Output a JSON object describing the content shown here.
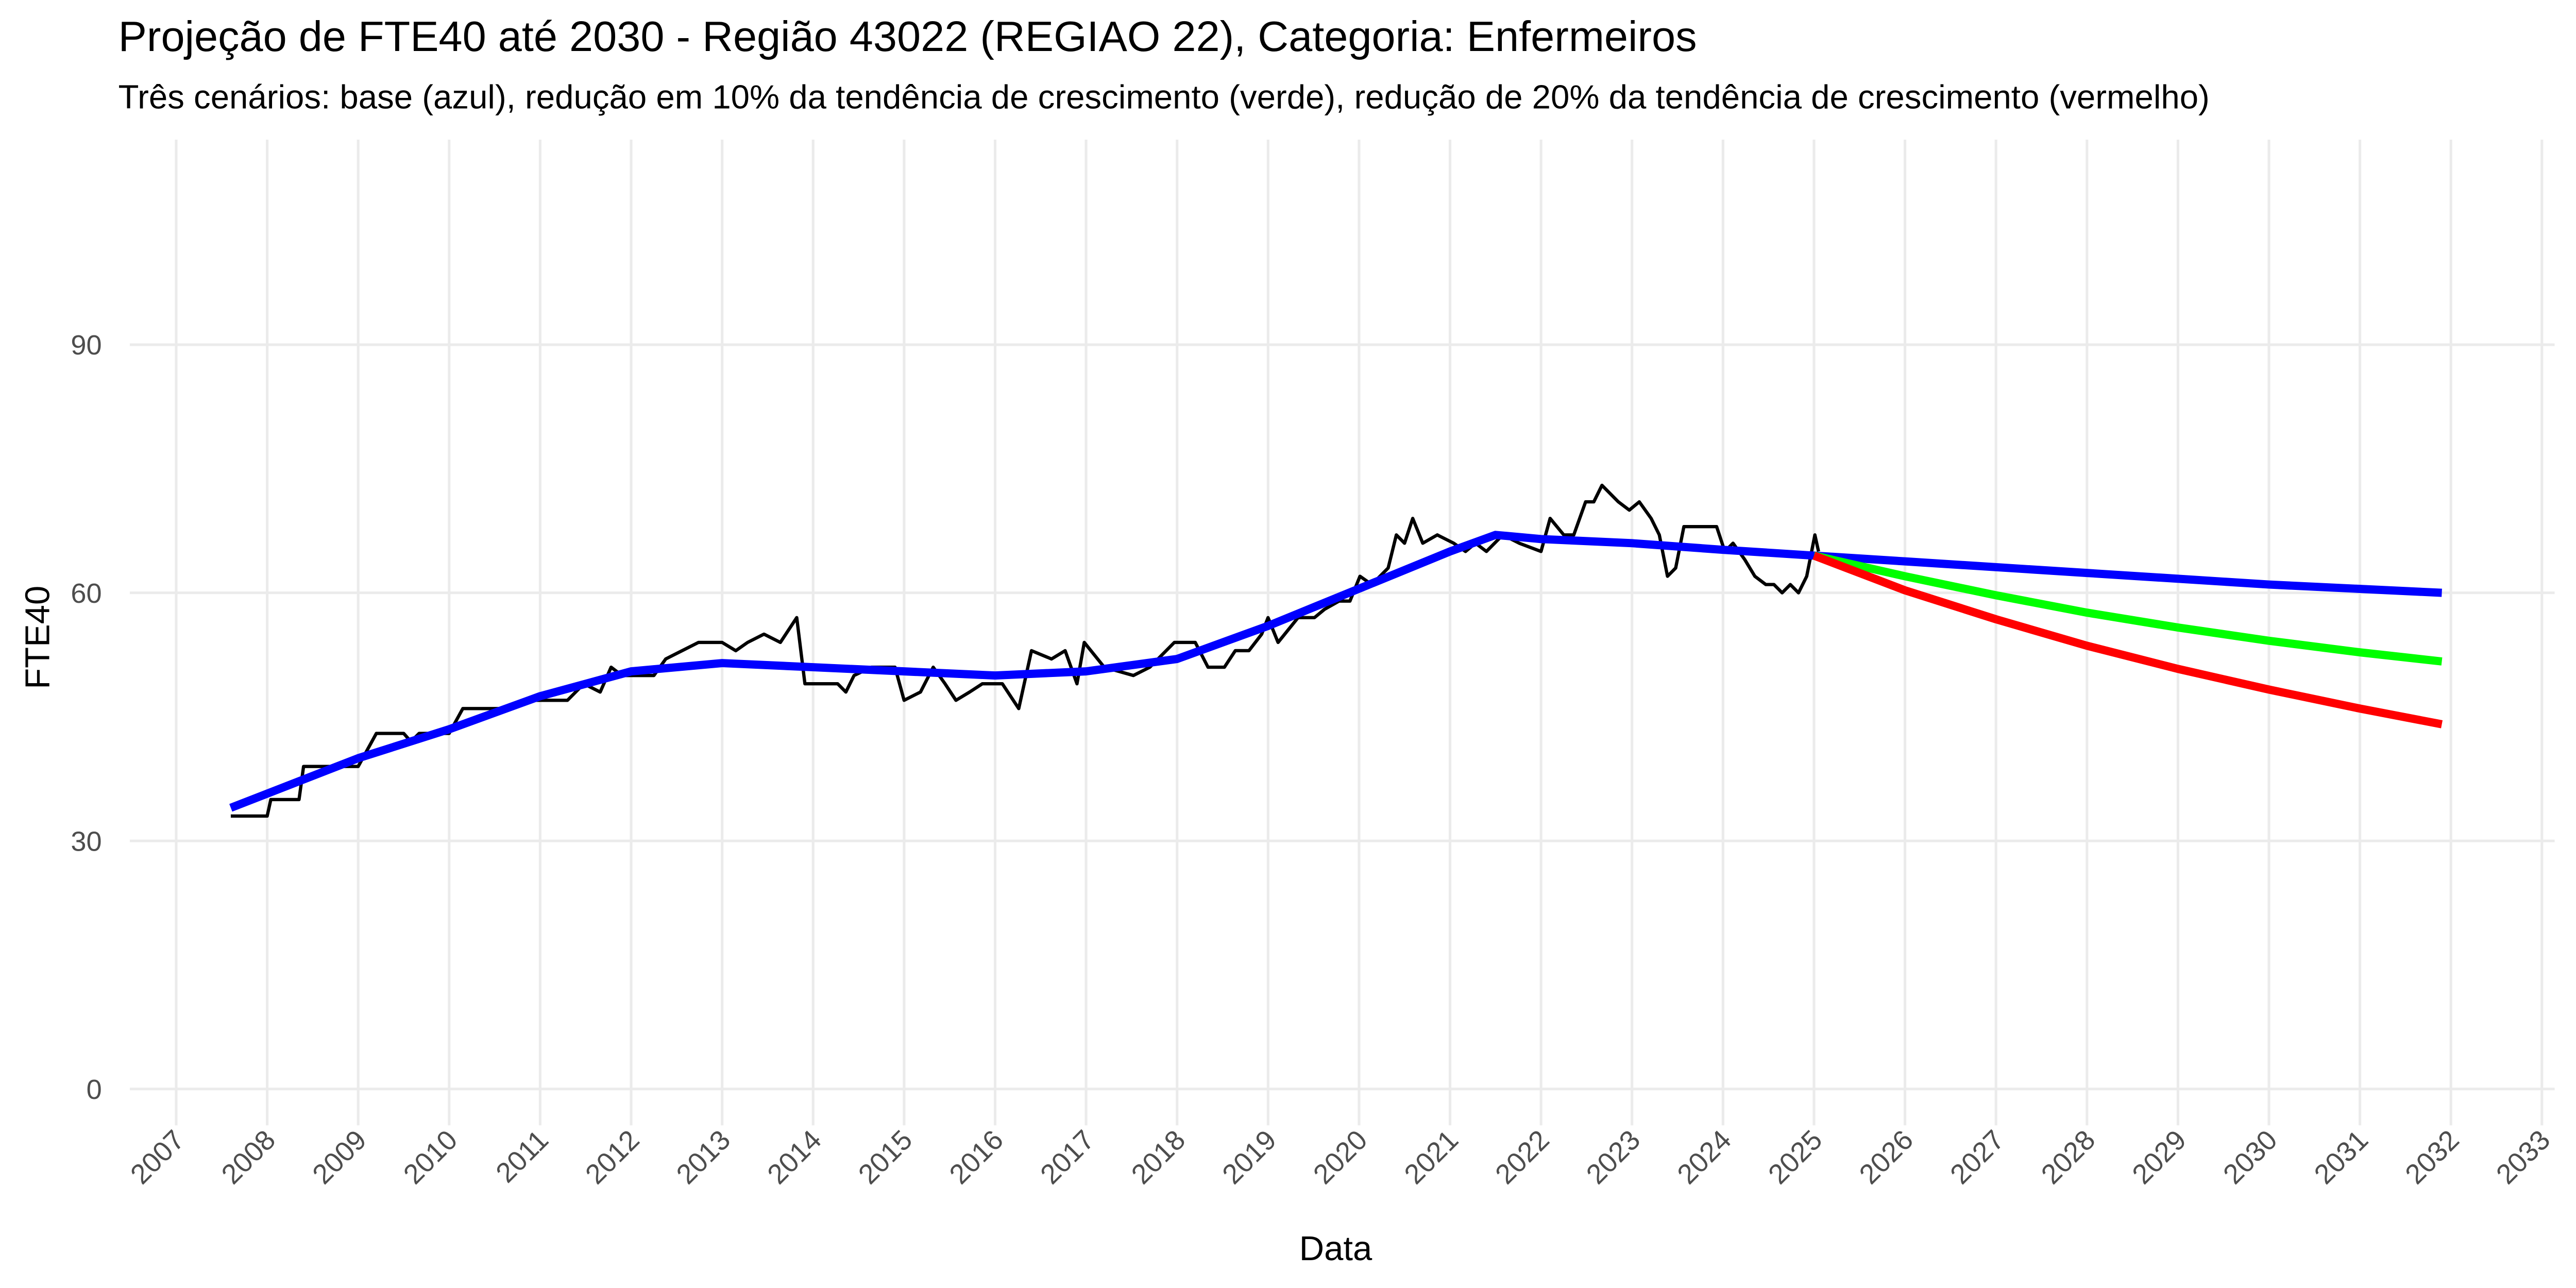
{
  "chart_data": {
    "type": "line",
    "title": "Projeção de FTE40 até 2030 - Região 43022 (REGIAO 22), Categoria: Enfermeiros",
    "subtitle": "Três cenários: base (azul), redução em 10% da tendência de crescimento (verde), redução de 20% da tendência de crescimento (vermelho)",
    "xlabel": "Data",
    "ylabel": "FTE40",
    "xlim": [
      2006.49,
      2033.14
    ],
    "xticks": [
      2007,
      2008,
      2009,
      2010,
      2011,
      2012,
      2013,
      2014,
      2015,
      2016,
      2017,
      2018,
      2019,
      2020,
      2021,
      2022,
      2023,
      2024,
      2025,
      2026,
      2027,
      2028,
      2029,
      2030,
      2031,
      2032,
      2033
    ],
    "ylim": [
      -4.4,
      114.8
    ],
    "yticks": [
      0,
      30,
      60,
      90
    ],
    "grid": true,
    "series": [
      {
        "color": "#000000",
        "x": [
          2007.6,
          2008.0,
          2008.04,
          2008.35,
          2008.4,
          2009.0,
          2009.2,
          2009.5,
          2009.58,
          2009.67,
          2010.0,
          2010.15,
          2010.65,
          2010.8,
          2011.3,
          2011.48,
          2011.66,
          2011.78,
          2011.9,
          2012.25,
          2012.38,
          2012.56,
          2012.74,
          2013.0,
          2013.15,
          2013.28,
          2013.46,
          2013.64,
          2013.82,
          2013.91,
          2014.27,
          2014.36,
          2014.45,
          2014.64,
          2014.9,
          2015.0,
          2015.18,
          2015.32,
          2015.45,
          2015.57,
          2015.72,
          2015.86,
          2016.08,
          2016.26,
          2016.4,
          2016.62,
          2016.77,
          2016.9,
          2016.98,
          2017.2,
          2017.52,
          2017.7,
          2017.97,
          2018.2,
          2018.34,
          2018.52,
          2018.64,
          2018.79,
          2018.93,
          2019.0,
          2019.11,
          2019.33,
          2019.51,
          2019.62,
          2019.78,
          2019.9,
          2020.01,
          2020.14,
          2020.32,
          2020.41,
          2020.5,
          2020.59,
          2020.7,
          2020.86,
          2021.04,
          2021.17,
          2021.28,
          2021.4,
          2021.58,
          2021.76,
          2022.0,
          2022.1,
          2022.25,
          2022.36,
          2022.49,
          2022.58,
          2022.67,
          2022.85,
          2022.97,
          2023.08,
          2023.21,
          2023.3,
          2023.39,
          2023.48,
          2023.57,
          2023.93,
          2024.02,
          2024.11,
          2024.24,
          2024.35,
          2024.47,
          2024.56,
          2024.65,
          2024.74,
          2024.83,
          2024.92,
          2025.01,
          2025.05
        ],
        "values": [
          33,
          33,
          35,
          35,
          39,
          39,
          43,
          43,
          42,
          43,
          43,
          46,
          46,
          47,
          47,
          49,
          48,
          51,
          50,
          50,
          52,
          53,
          54,
          54,
          53,
          54,
          55,
          54,
          57,
          49,
          49,
          48,
          50,
          51,
          51,
          47,
          48,
          51,
          49,
          47,
          48,
          49,
          49,
          46,
          53,
          52,
          53,
          49,
          54,
          51,
          50,
          51,
          54,
          54,
          51,
          51,
          53,
          53,
          55,
          57,
          54,
          57,
          57,
          58,
          59,
          59,
          62,
          61,
          63,
          67,
          66,
          69,
          66,
          67,
          66,
          65,
          66,
          65,
          67,
          66,
          65,
          69,
          67,
          67,
          71,
          71,
          73,
          71,
          70,
          71,
          69,
          67,
          62,
          63,
          68,
          68,
          65,
          66,
          64,
          62,
          61,
          61,
          60,
          61,
          60,
          62,
          67,
          65
        ]
      },
      {
        "color": "#0000ff",
        "x": [
          2007.6,
          2009,
          2010,
          2011,
          2012,
          2013,
          2014,
          2015,
          2016,
          2017,
          2018,
          2019,
          2020,
          2021,
          2021.5,
          2022,
          2023,
          2024,
          2025,
          2026,
          2028,
          2030,
          2031.9
        ],
        "values": [
          34,
          40,
          43.5,
          47.5,
          50.5,
          51.5,
          51,
          50.5,
          50,
          50.5,
          52,
          56,
          60.5,
          65,
          67,
          66.5,
          66,
          65.2,
          64.5,
          63.8,
          62.4,
          61,
          60
        ]
      },
      {
        "color": "#00ff00",
        "x": [
          2025,
          2026,
          2027,
          2028,
          2029,
          2030,
          2031,
          2031.9
        ],
        "values": [
          64.5,
          62,
          59.7,
          57.6,
          55.8,
          54.2,
          52.8,
          51.7
        ]
      },
      {
        "color": "#ff0000",
        "x": [
          2025,
          2026,
          2027,
          2028,
          2029,
          2030,
          2031,
          2031.9
        ],
        "values": [
          64.5,
          60.3,
          56.8,
          53.6,
          50.8,
          48.3,
          46,
          44.1
        ]
      }
    ]
  }
}
